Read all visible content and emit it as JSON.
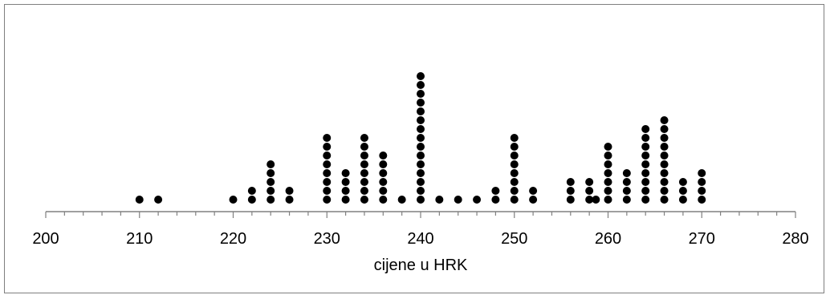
{
  "chart_data": {
    "type": "scatter",
    "subtype": "dot-plot",
    "title": "",
    "xlabel": "cijene u HRK",
    "ylabel": "",
    "xlim": [
      200,
      280
    ],
    "major_tick_step": 10,
    "minor_tick_step": 2,
    "x_tick_labels": [
      "200",
      "210",
      "220",
      "230",
      "240",
      "250",
      "260",
      "270",
      "280"
    ],
    "grid": false,
    "legend": "none",
    "marker_color": "#000000",
    "stacks": [
      {
        "x": 210,
        "count": 1
      },
      {
        "x": 212,
        "count": 1
      },
      {
        "x": 220,
        "count": 1
      },
      {
        "x": 222,
        "count": 2
      },
      {
        "x": 224,
        "count": 5
      },
      {
        "x": 226,
        "count": 2
      },
      {
        "x": 230,
        "count": 8
      },
      {
        "x": 232,
        "count": 4
      },
      {
        "x": 234,
        "count": 8
      },
      {
        "x": 236,
        "count": 6
      },
      {
        "x": 238,
        "count": 1
      },
      {
        "x": 240,
        "count": 15
      },
      {
        "x": 242,
        "count": 1
      },
      {
        "x": 244,
        "count": 1
      },
      {
        "x": 246,
        "count": 1
      },
      {
        "x": 248,
        "count": 2
      },
      {
        "x": 250,
        "count": 8
      },
      {
        "x": 252,
        "count": 2
      },
      {
        "x": 256,
        "count": 3
      },
      {
        "x": 258,
        "count": 3
      },
      {
        "x": 258.7,
        "count": 1
      },
      {
        "x": 260,
        "count": 7
      },
      {
        "x": 262,
        "count": 4
      },
      {
        "x": 264,
        "count": 9
      },
      {
        "x": 266,
        "count": 10
      },
      {
        "x": 268,
        "count": 3
      },
      {
        "x": 270,
        "count": 4
      }
    ]
  }
}
